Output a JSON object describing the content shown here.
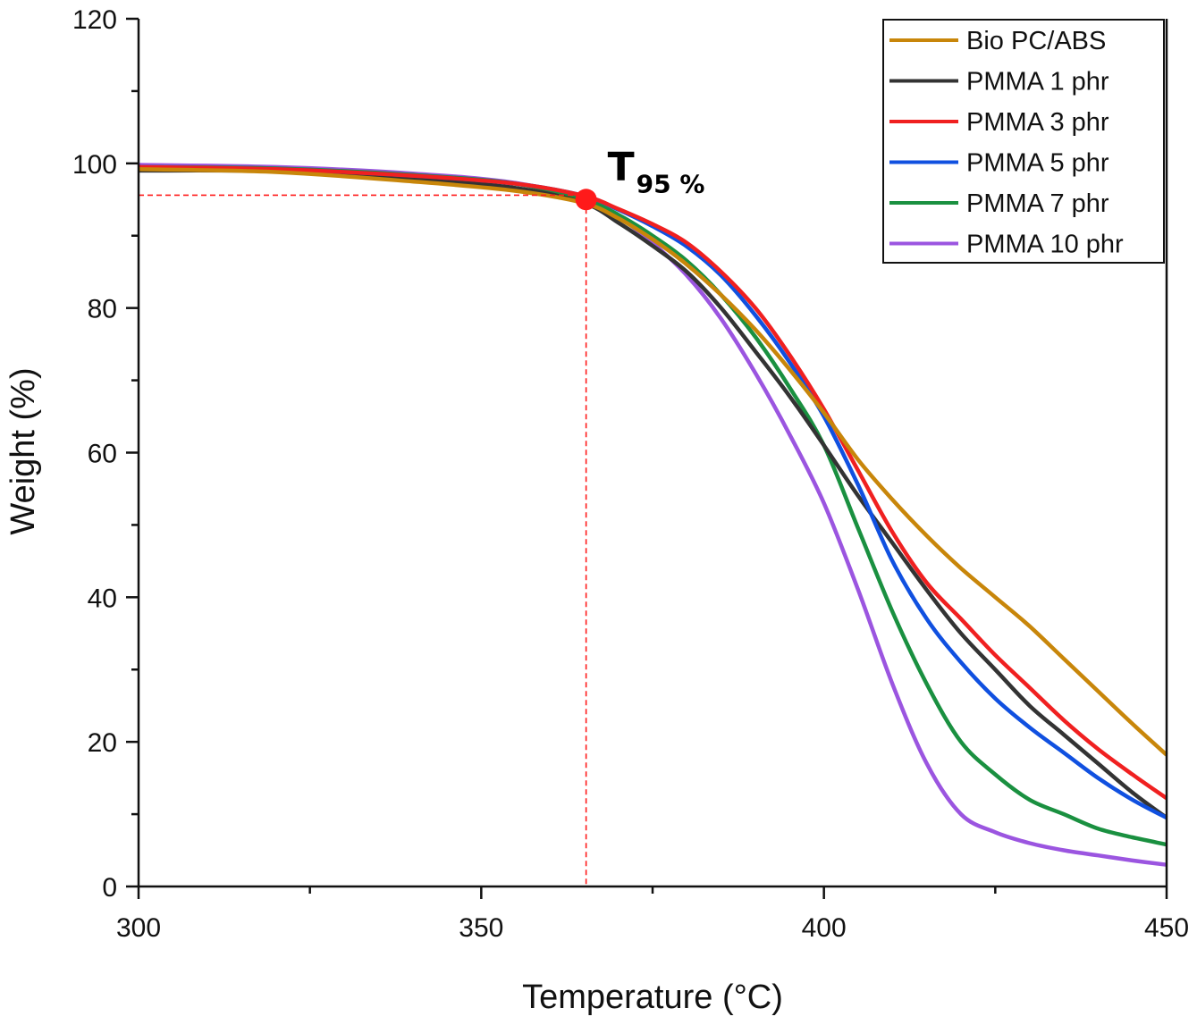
{
  "chart_data": {
    "type": "line",
    "title": "",
    "xlabel": "Temperature (°C)",
    "ylabel": "Weight (%)",
    "xlim": [
      300,
      450
    ],
    "ylim": [
      0,
      120
    ],
    "xticks": [
      300,
      350,
      400,
      450
    ],
    "yticks": [
      0,
      20,
      40,
      60,
      80,
      100,
      120
    ],
    "grid": false,
    "legend_position": "top-right",
    "x": [
      300,
      320,
      340,
      355,
      365,
      370,
      375,
      380,
      385,
      390,
      395,
      400,
      405,
      410,
      415,
      420,
      425,
      430,
      435,
      440,
      445,
      450
    ],
    "series": [
      {
        "name": "Bio PC/ABS",
        "color": "#C8860A",
        "values": [
          99.2,
          98.8,
          97.5,
          96.2,
          94.5,
          92.4,
          89.5,
          86.0,
          81.8,
          77.0,
          71.5,
          65.5,
          59.0,
          53.5,
          48.5,
          44.0,
          40.0,
          36.0,
          31.5,
          27.0,
          22.5,
          18.2
        ]
      },
      {
        "name": "PMMA 1 phr",
        "color": "#333333",
        "values": [
          99.0,
          98.9,
          97.8,
          96.6,
          94.5,
          91.8,
          88.6,
          85.0,
          80.0,
          74.0,
          67.8,
          61.0,
          54.0,
          47.5,
          41.0,
          35.0,
          30.0,
          25.0,
          21.0,
          17.0,
          13.0,
          9.5
        ]
      },
      {
        "name": "PMMA 3 phr",
        "color": "#F02020",
        "values": [
          99.5,
          99.2,
          98.3,
          97.2,
          95.5,
          93.7,
          91.6,
          89.0,
          85.0,
          80.0,
          73.5,
          66.0,
          57.5,
          49.0,
          42.0,
          37.0,
          32.0,
          27.5,
          23.0,
          19.0,
          15.5,
          12.2
        ]
      },
      {
        "name": "PMMA 5 phr",
        "color": "#1050E0",
        "values": [
          99.5,
          99.2,
          98.3,
          97.2,
          95.5,
          93.6,
          91.3,
          88.5,
          84.5,
          79.0,
          72.5,
          65.0,
          55.5,
          45.0,
          37.0,
          31.0,
          26.0,
          22.0,
          18.5,
          15.0,
          12.0,
          9.5
        ]
      },
      {
        "name": "PMMA 7 phr",
        "color": "#1A9040",
        "values": [
          99.5,
          99.3,
          98.4,
          97.2,
          95.0,
          92.9,
          90.0,
          86.5,
          81.8,
          76.0,
          69.0,
          61.0,
          49.5,
          38.0,
          28.0,
          20.0,
          15.5,
          12.0,
          10.0,
          8.0,
          6.8,
          5.8
        ]
      },
      {
        "name": "PMMA 10 phr",
        "color": "#9B55E0",
        "values": [
          99.8,
          99.5,
          98.6,
          97.3,
          95.0,
          92.6,
          89.0,
          84.5,
          78.5,
          71.0,
          62.5,
          53.0,
          41.0,
          28.0,
          17.0,
          10.0,
          7.5,
          6.0,
          5.0,
          4.3,
          3.6,
          3.0
        ]
      }
    ],
    "annotations": [
      {
        "type": "point",
        "label": "T95 %",
        "label_main": "T",
        "label_sub": "95 %",
        "x": 365.3,
        "y": 95,
        "color": "#FF1A1A",
        "guides": "dashed red lines to x and y axes"
      }
    ]
  }
}
